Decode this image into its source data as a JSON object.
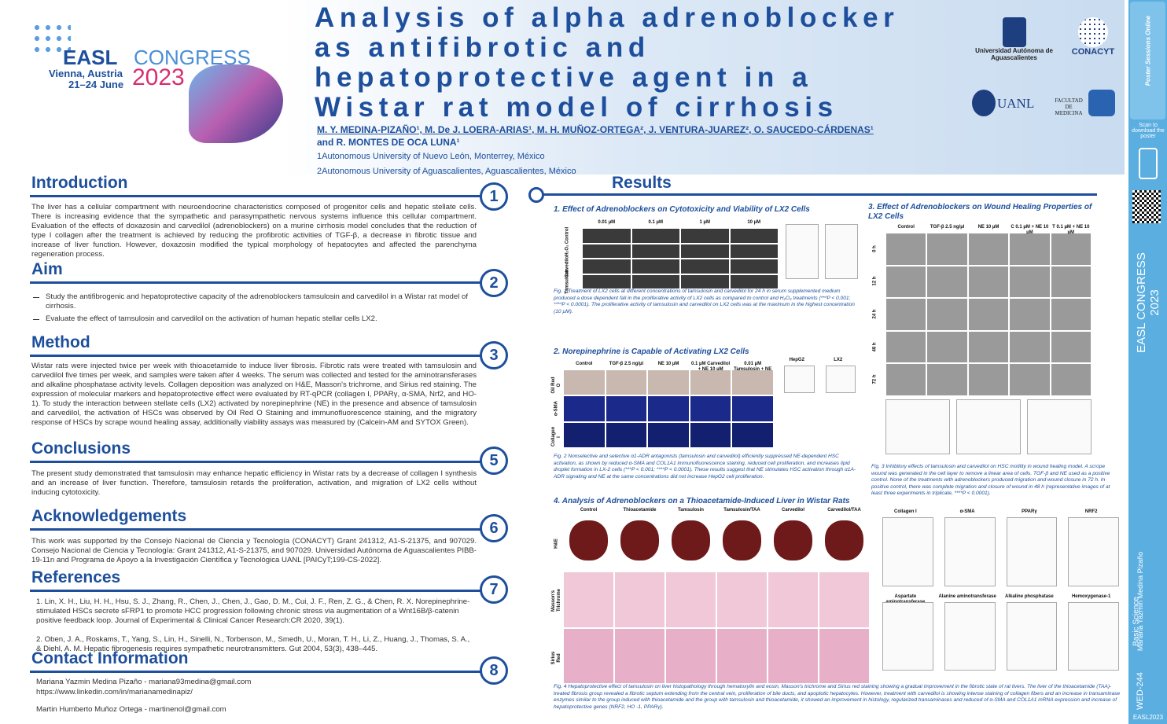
{
  "header": {
    "title_lines": [
      "Analysis of alpha adrenoblocker",
      "as antifibrotic and",
      "hepatoprotective agent in a",
      "Wistar rat model of cirrhosis"
    ],
    "authors": [
      "M. Y. MEDINA-PIZAÑO¹, M. De J. LOERA-ARIAS¹, M. H. MUÑOZ-ORTEGA², J. VENTURA-JUAREZ², O. SAUCEDO-CÁRDENAS¹",
      "and R. MONTES DE OCA LUNA¹"
    ],
    "affiliations": [
      "1Autonomous University of Nuevo León, Monterrey, México",
      "2Autonomous University of Aguascalientes, Aguascalientes, México"
    ],
    "congress": {
      "name1": "EASL",
      "name2": "CONGRESS",
      "place": "Vienna, Austria",
      "dates": "21–24 June",
      "year": "2023"
    },
    "logos": [
      "Universidad Autónoma de Aguascalientes",
      "CONACYT",
      "UANL",
      "FACULTAD DE MEDICINA"
    ]
  },
  "sections": [
    {
      "number": "1",
      "title": "Introduction",
      "text": "The liver has a cellular compartment with neuroendocrine characteristics composed of progenitor cells and hepatic stellate cells. There is increasing evidence that the sympathetic and parasympathetic nervous systems influence this cellular compartment. Evaluation of the effects of doxazosin and carvedilol (adrenoblockers) on a murine cirrhosis model concludes that the reduction of type I collagen after the treatment is achieved by reducing the profibrotic activities of TGF-β, a decrease in fibrotic tissue and increase of liver function. However, doxazosin modified the typical morphology of hepatocytes and affected the parenchyma regeneration process."
    },
    {
      "number": "2",
      "title": "Aim",
      "items": [
        "Study the antifibrogenic and hepatoprotective capacity of the adrenoblockers tamsulosin and carvedilol in a Wistar rat model of cirrhosis.",
        "Evaluate the effect of tamsulosin and carvedilol on the activation of human hepatic stellar cells LX2."
      ]
    },
    {
      "number": "3",
      "title": "Method",
      "text": "Wistar rats were injected twice per week with thioacetamide to induce liver fibrosis. Fibrotic rats were treated with tamsulosin and carvedilol five times per week, and samples were taken after 4 weeks. The serum was collected and tested for the aminotransferases and alkaline phosphatase activity levels. Collagen deposition was analyzed on H&E, Masson's trichrome, and Sirius red staining. The expression of molecular markers and hepatoprotective effect were evaluated by RT-qPCR (collagen I, PPARγ, α-SMA, Nrf2, and HO-1). To study the interaction between stellate cells (LX2) activated by norepinephrine (NE) in the presence and absence of tamsulosin and carvedilol, the activation of HSCs was observed by Oil Red O Staining and immunofluorescence staining, and the migratory response of HSCs by scrape wound healing assay, additionally viability assays was measured by (Calcein-AM and SYTOX Green)."
    },
    {
      "number": "5",
      "title": "Conclusions",
      "text": "The present study demonstrated that tamsulosin may enhance hepatic efficiency in Wistar rats by a decrease of collagen I synthesis and an increase of liver function. Therefore, tamsulosin retards the proliferation, activation, and migration of LX2 cells without inducing cytotoxicity."
    },
    {
      "number": "6",
      "title": "Acknowledgements",
      "text": "This work was supported by the Consejo Nacional de Ciencia y Tecnología (CONACYT) Grant 241312, A1-S-21375, and 907029. Consejo Nacional de Ciencia y Tecnología: Grant 241312, A1-S-21375, and 907029. Universidad Autónoma de Aguascalientes PIBB-19-11n and Programa de Apoyo a la Investigación Científica y Tecnológica UANL [PAICyT;199-CS-2022]."
    },
    {
      "number": "7",
      "title": "References",
      "items": [
        "1. Lin, X. H., Liu, H. H., Hsu, S. J., Zhang, R., Chen, J., Chen, J., Gao, D. M., Cui, J. F., Ren, Z. G., & Chen, R. X. Norepinephrine-stimulated HSCs secrete sFRP1 to promote HCC progression following chronic stress via augmentation of a Wnt16B/β-catenin positive feedback loop. Journal of Experimental & Clinical Cancer Research:CR 2020, 39(1).",
        "2. Oben, J. A., Roskams, T., Yang, S., Lin, H., Sinelli, N., Torbenson, M., Smedh, U., Moran, T. H., Li, Z., Huang, J., Thomas, S. A., & Diehl, A. M. Hepatic fibrogenesis requires sympathetic neurotransmitters. Gut 2004, 53(3), 438–445."
      ]
    },
    {
      "number": "8",
      "title": "Contact Information",
      "items": [
        "Mariana Yazmin Medina Pizaño - mariana93medina@gmail.com",
        "https://www.linkedin.com/in/marianamedinapiz/",
        "Martin Humberto Muñoz Ortega - martinenol@gmail.com"
      ]
    }
  ],
  "results": {
    "title": "Results",
    "figures": [
      {
        "title": "1. Effect of Adrenoblockers on Cytotoxicity and Viability of LX2 Cells",
        "columns": [
          "0.01 µM",
          "0.1 µM",
          "1 µM",
          "10 µM"
        ],
        "rows": [
          "Control",
          "H₂O₂",
          "Carvedilol",
          "Tamsulosin"
        ],
        "caption": "Fig. 1 Treatment of LX2 cells at different concentrations of tamsulosin and carvedilol for 24 h in serum supplemented medium produced a dose dependent fall in the proliferative activity of LX2 cells as compared to control and H₂O₂ treatments (***P < 0.001; ****P < 0.0001). The proliferative activity of tamsulosin and carvedilol on LX2 cells was at the maximum in the highest concentration (10 µM)."
      },
      {
        "title": "2. Norepinephrine is Capable of Activating LX2 Cells",
        "columns": [
          "Control",
          "TGF-β 2.5 ng/µl",
          "NE 10 µM",
          "0.1 µM Carvedilol + NE 10 µM",
          "0.01 µM Tamsulosin + NE 10 µM"
        ],
        "rows": [
          "Oil Red O",
          "α-SMA",
          "Collagen I"
        ],
        "charts": [
          "HepG2",
          "LX2"
        ],
        "caption": "Fig. 2 Nonselective and selective α1-ADR antagonists (tamsulosin and carvedilol) efficiently suppressed NE-dependent HSC activation, as shown by reduced α-SMA and COL1A1 immunofluorescence staining, reduced cell proliferation, and increases lipid droplet formation in LX-2 cells (***P < 0.001; ****P < 0.0001). These results suggest that NE stimulates HSC activation through α1A-ADR signaling and NE at the same concentrations did not increase HepG2 cell proliferation."
      },
      {
        "title": "3. Effect of Adrenoblockers on Wound Healing Properties of LX2 Cells",
        "columns": [
          "Control",
          "TGF-β 2.5 ng/µl",
          "NE 10 µM",
          "C 0.1 µM + NE 10 µM",
          "T 0.1 µM + NE 10 µM"
        ],
        "rows": [
          "0 h",
          "12 h",
          "24 h",
          "48 h",
          "72 h"
        ],
        "caption": "Fig. 3 Inhibitory effects of tamsulosin and carvedilol on HSC motility in wound healing model. A scrope wound was generated in the cell layer to remove a linear area of cells. TGF-β and NE used as a positive control. None of the treatments with adrenoblockers produced migration and wound closure in 72 h. In positive control, there was complete migration and closure of wound in 48 h (representative images of at least three experiments in triplicate, ****P < 0.0001)."
      },
      {
        "title": "4. Analysis of Adrenoblockers on a Thioacetamide-Induced Liver in Wistar Rats",
        "columns": [
          "Control",
          "Thioacetamide",
          "Tamsulosin",
          "Tamsulosin/TAA",
          "Carvedilol",
          "Carvedilol/TAA"
        ],
        "rows": [
          "H&E",
          "Masson's Trichrome",
          "Sirius Red"
        ],
        "charts": [
          "Collagen I",
          "α-SMA",
          "PPARγ",
          "NRF2",
          "Aspartate aminotransferase",
          "Alanine aminotransferase",
          "Alkaline phosphatase",
          "Hemoxygenase-1"
        ],
        "caption": "Fig. 4 Hepatoprotective effect of tamsulosin on liver histopathology through hematoxylin and eosin, Masson's trichrome and Sirius red staining showing a gradual improvement in the fibrotic state of rat livers. The liver of the thioacetamide (TAA)-treated fibrosis group revealed a fibrotic septum extending from the central vein, proliferation of bile ducts, and apoptotic hepatocytes. However, treatment with carvedilol is showing intense staining of collagen fibers and an increase in transaminase enzymes similar to the group induced with thioacetamide and the group with tamsulosin and thioacetamide, it showed an improvement in histology, regularized transaminases and reduced of α-SMA and COL1A1 mRNA expression and increase of hepatoprotective genes (NRF2, HO -1, PPARγ)."
      }
    ]
  },
  "sidebar": {
    "brand": "Poster Sessions Online",
    "scan": "Scan to download the poster",
    "congress": "EASL CONGRESS 2023",
    "category": "Basic Science",
    "author": "Mariana Yazmin Medina Pizaño",
    "code": "WED-244",
    "tag": "EASL2023"
  }
}
